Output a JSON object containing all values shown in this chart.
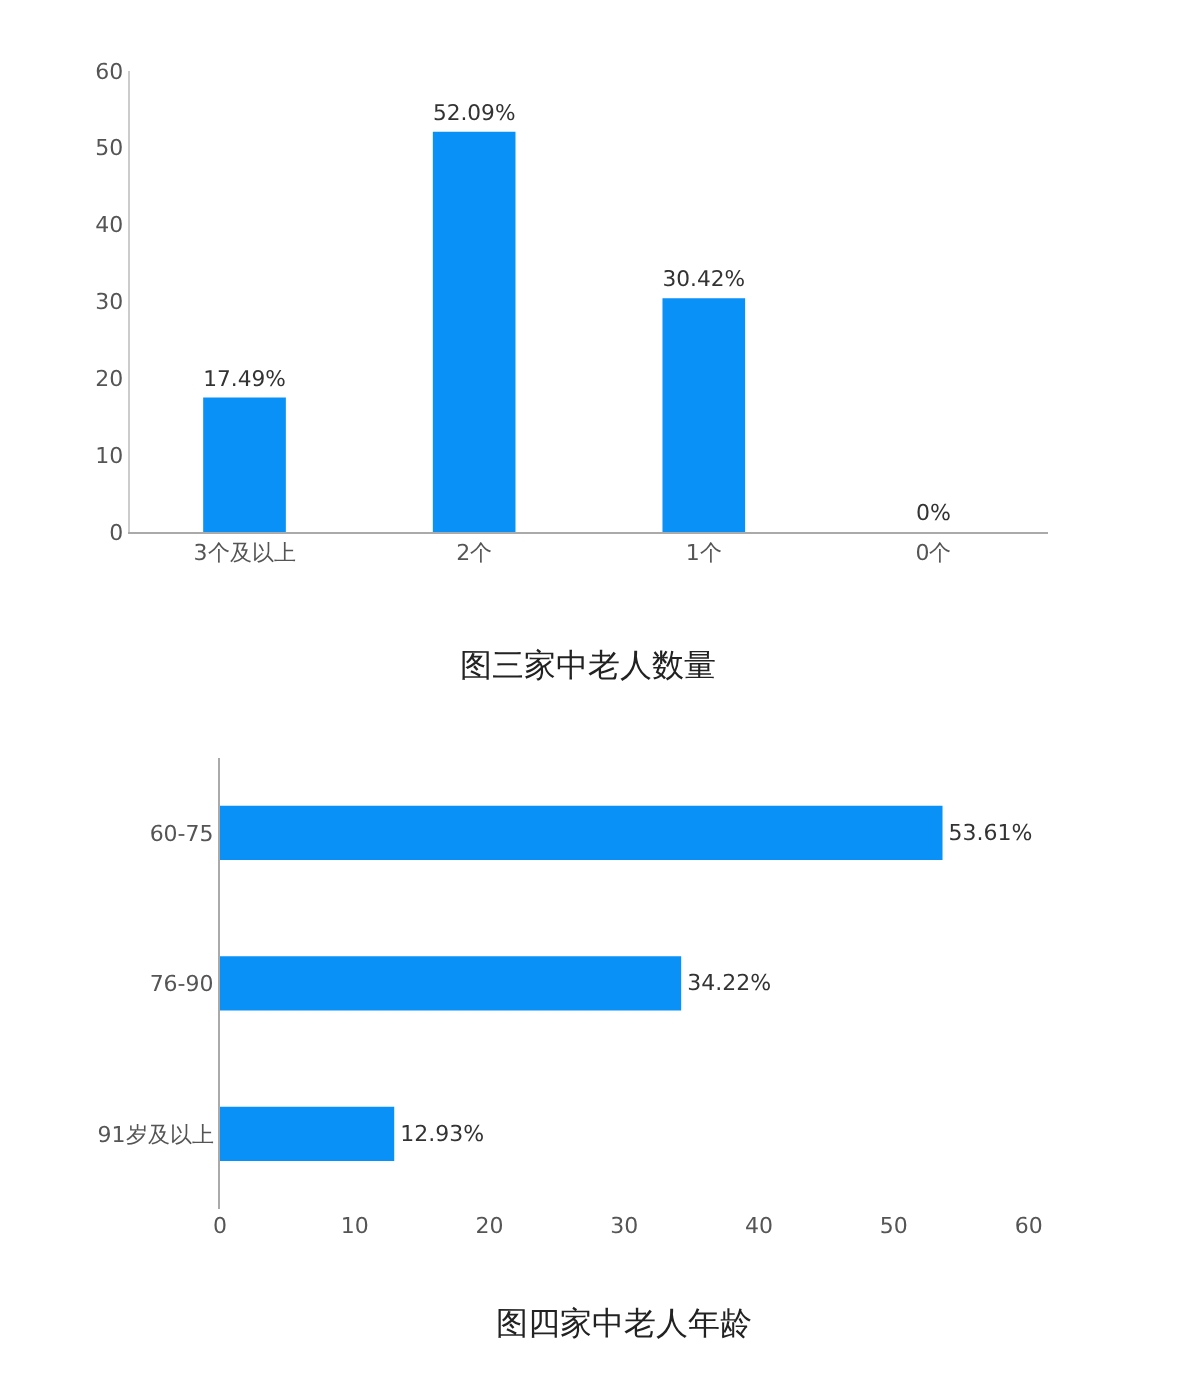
{
  "chart_data": [
    {
      "type": "bar",
      "title": "图三家中老人数量",
      "categories": [
        "3个及以上",
        "2个",
        "1个",
        "0个"
      ],
      "values": [
        17.49,
        52.09,
        30.42,
        0
      ],
      "value_labels": [
        "17.49%",
        "52.09%",
        "30.42%",
        "0%"
      ],
      "color": "#0991f7",
      "ylim": [
        0,
        60
      ],
      "yticks": [
        0,
        10,
        20,
        30,
        40,
        50,
        60
      ]
    },
    {
      "type": "bar",
      "orientation": "horizontal",
      "title": "图四家中老人年龄",
      "categories": [
        "60-75",
        "76-90",
        "91岁及以上"
      ],
      "values": [
        53.61,
        34.22,
        12.93
      ],
      "value_labels": [
        "53.61%",
        "34.22%",
        "12.93%"
      ],
      "color": "#0991f7",
      "xlim": [
        0,
        60
      ],
      "xticks": [
        0,
        10,
        20,
        30,
        40,
        50,
        60
      ]
    }
  ]
}
